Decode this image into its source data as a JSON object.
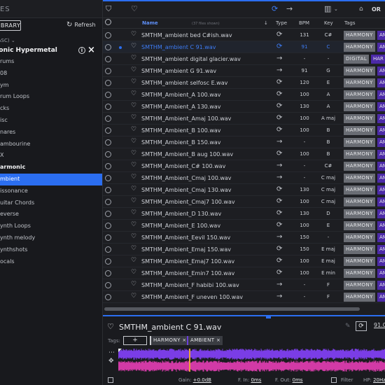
{
  "sidebar": {
    "header_title": "IES",
    "library_label": "LIBRARY",
    "refresh_label": "Refresh",
    "sort_label": "(ASC)",
    "pack_title": "ltonic Hypermetal",
    "categories": [
      {
        "label": "rums",
        "bold": false,
        "selected": false
      },
      {
        "label": "08",
        "bold": false,
        "selected": false
      },
      {
        "label": "ym",
        "bold": false,
        "selected": false
      },
      {
        "label": "rum Loops",
        "bold": false,
        "selected": false
      },
      {
        "label": "cks",
        "bold": false,
        "selected": false
      },
      {
        "label": "isc",
        "bold": false,
        "selected": false
      },
      {
        "label": "nares",
        "bold": false,
        "selected": false
      },
      {
        "label": "ambourine",
        "bold": false,
        "selected": false
      },
      {
        "label": "X",
        "bold": false,
        "selected": false
      },
      {
        "label": "armonic",
        "bold": true,
        "selected": false
      },
      {
        "label": "mbient",
        "bold": false,
        "selected": true
      },
      {
        "label": "issonance",
        "bold": false,
        "selected": false
      },
      {
        "label": "uitar Chords",
        "bold": false,
        "selected": false
      },
      {
        "label": "everse",
        "bold": false,
        "selected": false
      },
      {
        "label": "ynth Loops",
        "bold": false,
        "selected": false
      },
      {
        "label": "ynth melody",
        "bold": false,
        "selected": false
      },
      {
        "label": "ynthshots",
        "bold": false,
        "selected": false
      },
      {
        "label": "ocals",
        "bold": false,
        "selected": false
      }
    ]
  },
  "toolbar": {
    "filter_icon": "filter-icon",
    "heart_icon": "heart-icon",
    "loop_filter_icon": "loop-icon",
    "oneshot_filter_icon": "arrow-right-icon",
    "keys_icon": "piano-keys-icon",
    "tag_icon": "tag-icon",
    "or_label": "OR"
  },
  "columns": {
    "name": "Name",
    "count": "(37 files shown)",
    "type": "Type",
    "bpm": "BPM",
    "key": "Key",
    "tags": "Tags"
  },
  "files": [
    {
      "name": "SMTHM_ambient bed C#ish.wav",
      "type": "loop",
      "bpm": "131",
      "key": "C#",
      "tags": [
        "HARMONY",
        "AM"
      ],
      "selected": false
    },
    {
      "name": "SMTHM_ambient C 91.wav",
      "type": "loop",
      "bpm": "91",
      "key": "C",
      "tags": [
        "HARMONY",
        "AM"
      ],
      "selected": true
    },
    {
      "name": "SMTHM_ambient digital glacier.wav",
      "type": "oneshot",
      "bpm": "-",
      "key": "-",
      "tags": [
        "DIGITAL",
        "HAR"
      ],
      "selected": false
    },
    {
      "name": "SMTHM_ambient G 91.wav",
      "type": "oneshot",
      "bpm": "91",
      "key": "G",
      "tags": [
        "HARMONY",
        "AM"
      ],
      "selected": false
    },
    {
      "name": "SMTHM_ambient selfosc E.wav",
      "type": "loop",
      "bpm": "120",
      "key": "E",
      "tags": [
        "HARMONY",
        "AM"
      ],
      "selected": false
    },
    {
      "name": "SMTHM_Ambient_A 100.wav",
      "type": "loop",
      "bpm": "100",
      "key": "A",
      "tags": [
        "HARMONY",
        "AM"
      ],
      "selected": false
    },
    {
      "name": "SMTHM_Ambient_A 130.wav",
      "type": "loop",
      "bpm": "130",
      "key": "A",
      "tags": [
        "HARMONY",
        "AM"
      ],
      "selected": false
    },
    {
      "name": "SMTHM_Ambient_Amaj 100.wav",
      "type": "loop",
      "bpm": "100",
      "key": "A maj",
      "tags": [
        "HARMONY",
        "AM"
      ],
      "selected": false
    },
    {
      "name": "SMTHM_Ambient_B 100.wav",
      "type": "loop",
      "bpm": "100",
      "key": "B",
      "tags": [
        "HARMONY",
        "AM"
      ],
      "selected": false
    },
    {
      "name": "SMTHM_Ambient_B 150.wav",
      "type": "oneshot",
      "bpm": "-",
      "key": "B",
      "tags": [
        "HARMONY",
        "AM"
      ],
      "selected": false
    },
    {
      "name": "SMTHM_Ambient_B aug 100.wav",
      "type": "loop",
      "bpm": "100",
      "key": "B",
      "tags": [
        "HARMONY",
        "AM"
      ],
      "selected": false
    },
    {
      "name": "SMTHM_Ambient_C# 100.wav",
      "type": "oneshot",
      "bpm": "-",
      "key": "C#",
      "tags": [
        "HARMONY",
        "AM"
      ],
      "selected": false
    },
    {
      "name": "SMTHM_Ambient_Cmaj 100.wav",
      "type": "oneshot",
      "bpm": "-",
      "key": "C maj",
      "tags": [
        "HARMONY",
        "AM"
      ],
      "selected": false
    },
    {
      "name": "SMTHM_Ambient_Cmaj 130.wav",
      "type": "loop",
      "bpm": "130",
      "key": "C maj",
      "tags": [
        "HARMONY",
        "AM"
      ],
      "selected": false
    },
    {
      "name": "SMTHM_Ambient_Cmaj7 100.wav",
      "type": "loop",
      "bpm": "100",
      "key": "C maj",
      "tags": [
        "HARMONY",
        "AM"
      ],
      "selected": false
    },
    {
      "name": "SMTHM_Ambient_D 130.wav",
      "type": "loop",
      "bpm": "130",
      "key": "D",
      "tags": [
        "HARMONY",
        "AM"
      ],
      "selected": false
    },
    {
      "name": "SMTHM_Ambient_E 100.wav",
      "type": "loop",
      "bpm": "100",
      "key": "E",
      "tags": [
        "HARMONY",
        "AM"
      ],
      "selected": false
    },
    {
      "name": "SMTHM_Ambient_Eevil 150.wav",
      "type": "oneshot",
      "bpm": "150",
      "key": "-",
      "tags": [
        "HARMONY",
        "AM"
      ],
      "selected": false
    },
    {
      "name": "SMTHM_Ambient_Emaj 150.wav",
      "type": "loop",
      "bpm": "150",
      "key": "E maj",
      "tags": [
        "HARMONY",
        "AM"
      ],
      "selected": false
    },
    {
      "name": "SMTHM_Ambient_Emaj7 100.wav",
      "type": "loop",
      "bpm": "100",
      "key": "E maj",
      "tags": [
        "HARMONY",
        "AM"
      ],
      "selected": false
    },
    {
      "name": "SMTHM_Ambient_Emin7 100.wav",
      "type": "loop",
      "bpm": "100",
      "key": "E min",
      "tags": [
        "HARMONY",
        "AM"
      ],
      "selected": false
    },
    {
      "name": "SMTHM_Ambient_F habibi 100.wav",
      "type": "oneshot",
      "bpm": "-",
      "key": "F",
      "tags": [
        "HARMONY",
        "AM"
      ],
      "selected": false
    },
    {
      "name": "SMTHM_Ambient_F uneven 100.wav",
      "type": "oneshot",
      "bpm": "-",
      "key": "F",
      "tags": [
        "HARMONY",
        "AM"
      ],
      "selected": false
    }
  ],
  "player": {
    "title": "SMTHM_ambient C 91.wav",
    "bpm": "91.0",
    "tags_label": "Tags:",
    "add_tag": "+",
    "tags": [
      "HARMONY ×",
      "AMBIENT ×"
    ],
    "gain_label": "Gain:",
    "gain_value": "+0.0dB",
    "fade_in_label": "F. In:",
    "fade_in_value": "0ms",
    "fade_out_label": "F. Out:",
    "fade_out_value": "0ms",
    "filter_label": "Filter",
    "hp_label": "HP:",
    "hp_value": "20Hz",
    "playhead_fraction": 0.265
  },
  "colors": {
    "accent": "#2b6ef0",
    "tag_purple": "#4c2aa8",
    "tag_gray": "#6a6d74",
    "playhead": "#e9a23b",
    "waveform_top": "#7a3de6",
    "waveform_bottom": "#d23aa6"
  }
}
